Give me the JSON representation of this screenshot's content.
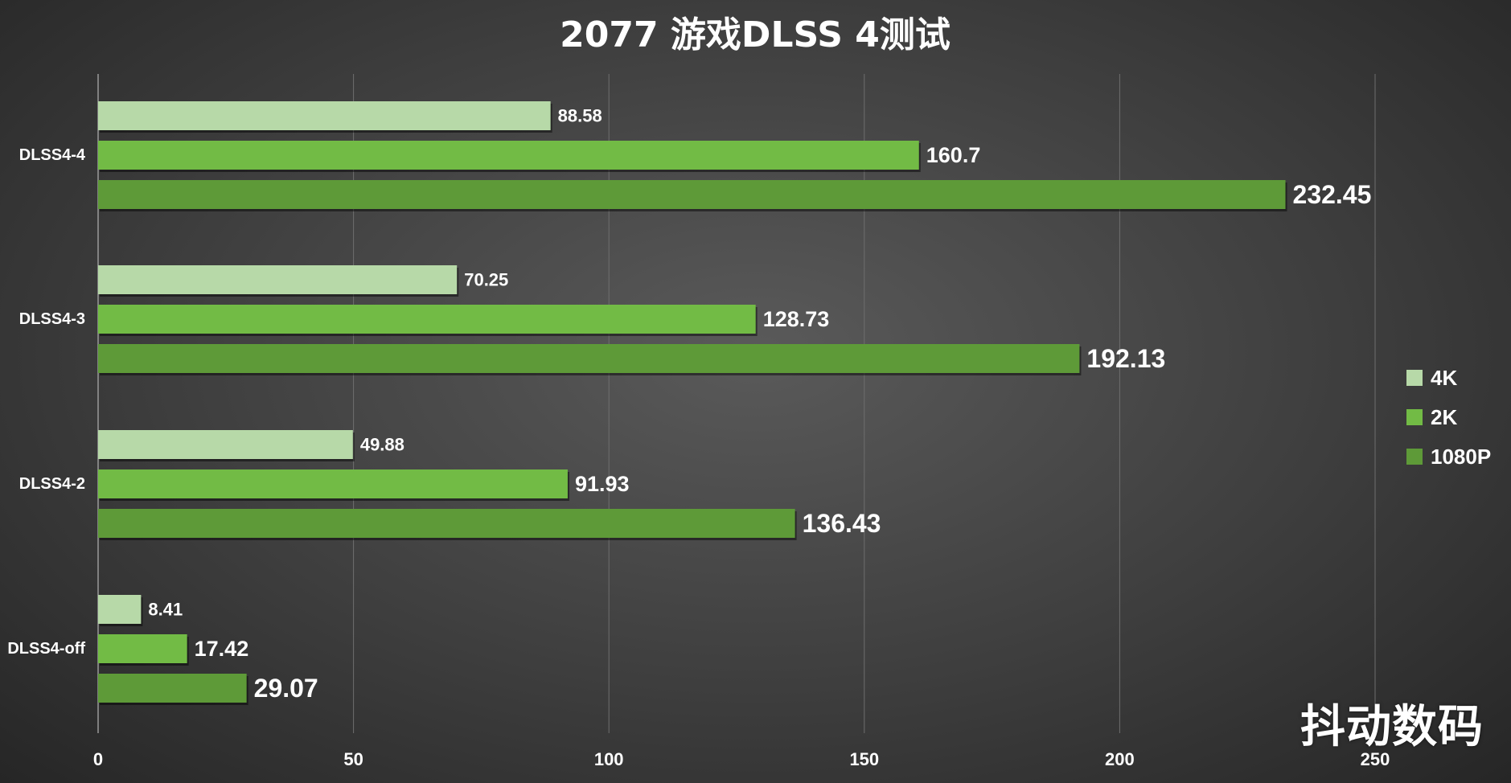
{
  "chart_data": {
    "type": "bar",
    "orientation": "horizontal",
    "title": "2077 游戏DLSS 4测试",
    "categories": [
      "DLSS4-4",
      "DLSS4-3",
      "DLSS4-2",
      "DLSS4-off"
    ],
    "series": [
      {
        "name": "4K",
        "color": "#b7d9a8",
        "values": [
          88.58,
          70.25,
          49.88,
          8.41
        ],
        "labels": [
          "88.58",
          "70.25",
          "49.88",
          "8.41"
        ]
      },
      {
        "name": "2K",
        "color": "#72bb45",
        "values": [
          160.7,
          128.73,
          91.93,
          17.42
        ],
        "labels": [
          "160.7",
          "128.73",
          "91.93",
          "17.42"
        ]
      },
      {
        "name": "1080P",
        "color": "#5e9a38",
        "values": [
          232.45,
          192.13,
          136.43,
          29.07
        ],
        "labels": [
          "232.45",
          "192.13",
          "136.43",
          "29.07"
        ]
      }
    ],
    "xlim": [
      0,
      250
    ],
    "xticks": [
      0,
      50,
      100,
      150,
      200,
      250
    ],
    "xtick_labels": [
      "0",
      "50",
      "100",
      "150",
      "200",
      "250"
    ],
    "grid": "vertical",
    "legend_position": "right"
  },
  "watermark": "抖动数码"
}
